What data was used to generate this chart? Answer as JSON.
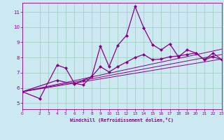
{
  "xlabel": "Windchill (Refroidissement éolien,°C)",
  "bg_color": "#cce8f0",
  "line_color": "#880088",
  "grid_color": "#99ccbb",
  "xlim": [
    0,
    23
  ],
  "ylim": [
    4.6,
    11.6
  ],
  "xticks": [
    0,
    2,
    3,
    4,
    5,
    6,
    7,
    8,
    9,
    10,
    11,
    12,
    13,
    14,
    15,
    16,
    17,
    18,
    19,
    20,
    21,
    22,
    23
  ],
  "yticks": [
    5,
    6,
    7,
    8,
    9,
    10,
    11
  ],
  "lines": [
    {
      "x": [
        0,
        2,
        4,
        5,
        6,
        7,
        8,
        9,
        10,
        11,
        12,
        13,
        14,
        15,
        16,
        17,
        18,
        19,
        20,
        21,
        22,
        23
      ],
      "y": [
        5.75,
        5.3,
        7.5,
        7.3,
        6.3,
        6.2,
        6.75,
        8.75,
        7.4,
        8.8,
        9.45,
        11.35,
        9.95,
        8.85,
        8.5,
        8.9,
        8.05,
        8.5,
        8.3,
        7.85,
        8.3,
        7.85
      ]
    },
    {
      "x": [
        0,
        4,
        6,
        7,
        8,
        9,
        10,
        11,
        12,
        13,
        14,
        15,
        16,
        17,
        18,
        19,
        20,
        21,
        22,
        23
      ],
      "y": [
        5.75,
        6.5,
        6.25,
        6.5,
        6.75,
        7.4,
        7.05,
        7.4,
        7.7,
        8.0,
        8.2,
        7.85,
        7.9,
        8.05,
        8.1,
        8.2,
        8.3,
        7.85,
        8.05,
        7.85
      ]
    },
    {
      "x": [
        0,
        23
      ],
      "y": [
        5.75,
        8.55
      ]
    },
    {
      "x": [
        0,
        23
      ],
      "y": [
        5.75,
        7.9
      ]
    },
    {
      "x": [
        0,
        23
      ],
      "y": [
        5.75,
        8.2
      ]
    }
  ]
}
